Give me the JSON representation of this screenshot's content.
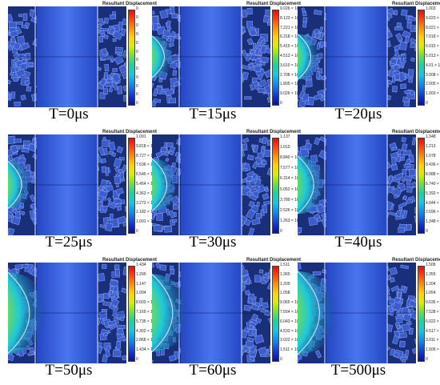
{
  "legend_title": "Resultant Displacement",
  "panels": [
    {
      "caption": "T=0μs",
      "amp": 0,
      "ticks": [
        "0",
        "0",
        "0",
        "0",
        "0",
        "0",
        "0",
        "0",
        "0",
        "0",
        "0",
        "0"
      ]
    },
    {
      "caption": "T=15μs",
      "amp": 0.18,
      "ticks": [
        "9.026 × 10⁻¹",
        "8.123 × 10⁻¹",
        "7.221 × 10⁻¹",
        "6.318 × 10⁻¹",
        "5.415 × 10⁻¹",
        "4.513 × 10⁻¹",
        "3.610 × 10⁻¹",
        "2.708 × 10⁻¹",
        "1.805 × 10⁻¹",
        "9.026 × 10⁻²",
        "0"
      ]
    },
    {
      "caption": "T=20μs",
      "amp": 0.22,
      "ticks": [
        "1.003",
        "9.023 × 10⁻¹",
        "8.021 × 10⁻¹",
        "7.018 × 10⁻¹",
        "6.015 × 10⁻¹",
        "5.013 × 10⁻¹",
        "4.01 × 10⁻¹",
        "3.008 × 10⁻¹",
        "2.005 × 10⁻¹",
        "1.003 × 10⁻¹",
        "0"
      ]
    },
    {
      "caption": "T=25μs",
      "amp": 0.24,
      "ticks": [
        "1.091",
        "9.818 × 10⁻¹",
        "8.727 × 10⁻¹",
        "7.636 × 10⁻¹",
        "6.545 × 10⁻¹",
        "5.454 × 10⁻¹",
        "4.363 × 10⁻¹",
        "3.273 × 10⁻¹",
        "2.182 × 10⁻¹",
        "1.091 × 10⁻¹",
        "0"
      ]
    },
    {
      "caption": "T=30μs",
      "amp": 0.3,
      "ticks": [
        "1.137",
        "1.010",
        "8.840 × 10⁻¹",
        "7.577 × 10⁻¹",
        "6.314 × 10⁻¹",
        "5.052 × 10⁻¹",
        "3.789 × 10⁻¹",
        "2.526 × 10⁻¹",
        "1.263 × 10⁻¹",
        "0"
      ]
    },
    {
      "caption": "T=40μs",
      "amp": 0.36,
      "ticks": [
        "1.348",
        "1.213",
        "1.078",
        "9.436 × 10⁻¹",
        "8.088 × 10⁻¹",
        "6.740 × 10⁻¹",
        "5.392 × 10⁻¹",
        "4.044 × 10⁻¹",
        "2.696 × 10⁻¹",
        "1.348 × 10⁻¹",
        "0"
      ]
    },
    {
      "caption": "T=50μs",
      "amp": 0.62,
      "ticks": [
        "1.434",
        "1.290",
        "1.147",
        "1.004",
        "8.603 × 10⁻¹",
        "7.169 × 10⁻¹",
        "5.735 × 10⁻¹",
        "4.302 × 10⁻¹",
        "2.868 × 10⁻¹",
        "1.434 × 10⁻¹",
        "0"
      ]
    },
    {
      "caption": "T=60μs",
      "amp": 0.58,
      "ticks": [
        "1.511",
        "1.360",
        "1.209",
        "1.058",
        "9.065 × 10⁻¹",
        "7.554 × 10⁻¹",
        "6.043 × 10⁻¹",
        "4.533 × 10⁻¹",
        "3.022 × 10⁻¹",
        "1.511 × 10⁻¹",
        "0"
      ]
    },
    {
      "caption": "T=500μs",
      "amp": 0.64,
      "ticks": [
        "1.506",
        "1.355",
        "1.204",
        "1.054",
        "9.035 × 10⁻¹",
        "7.528 × 10⁻¹",
        "6.022 × 10⁻¹",
        "4.517 × 10⁻¹",
        "3.011 × 10⁻¹",
        "1.506 × 10⁻¹",
        "0"
      ]
    }
  ]
}
